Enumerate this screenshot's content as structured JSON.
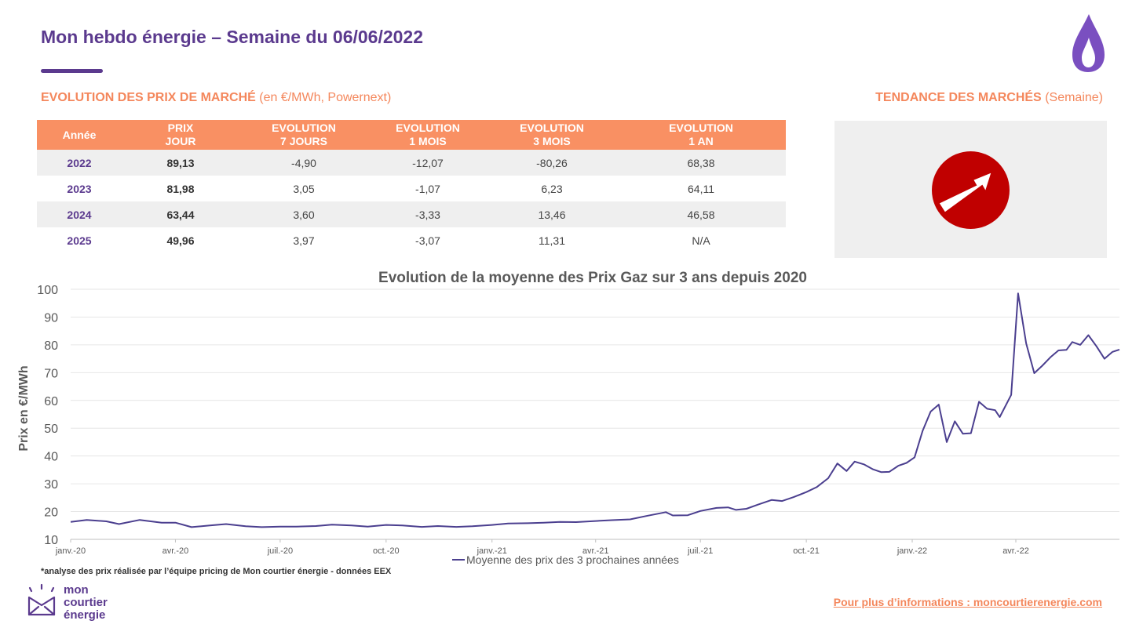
{
  "header": {
    "title": "Mon hebdo énergie – Semaine du 06/06/2022"
  },
  "prices_section": {
    "heading_bold": "EVOLUTION DES PRIX DE MARCHÉ",
    "heading_note": "(en €/MWh, Powernext)"
  },
  "trend_section": {
    "heading_bold": "TENDANCE DES MARCHÉS",
    "heading_note": "(Semaine)",
    "trend_icon": "arrow-up-right-circle-icon",
    "trend_color": "#c00000"
  },
  "prices_table": {
    "columns": [
      [
        "Année"
      ],
      [
        "PRIX",
        "JOUR"
      ],
      [
        "EVOLUTION",
        "7 JOURS"
      ],
      [
        "EVOLUTION",
        "1 MOIS"
      ],
      [
        "EVOLUTION",
        "3 MOIS"
      ],
      [
        "EVOLUTION",
        "1 AN"
      ]
    ],
    "rows": [
      [
        "2022",
        "89,13",
        "-4,90",
        "-12,07",
        "-80,26",
        "68,38"
      ],
      [
        "2023",
        "81,98",
        "3,05",
        "-1,07",
        "6,23",
        "64,11"
      ],
      [
        "2024",
        "63,44",
        "3,60",
        "-3,33",
        "13,46",
        "46,58"
      ],
      [
        "2025",
        "49,96",
        "3,97",
        "-3,07",
        "11,31",
        "N/A"
      ]
    ]
  },
  "chart_data": {
    "type": "line",
    "title": "Evolution de la moyenne des Prix Gaz sur 3 ans depuis 2020",
    "xlabel": "",
    "ylabel": "Prix en €/MWh",
    "ylim": [
      10,
      100
    ],
    "yticks": [
      10,
      20,
      30,
      40,
      50,
      60,
      70,
      80,
      90,
      100
    ],
    "grid": true,
    "legend_position": "bottom",
    "x_tick_labels": [
      "janv.-20",
      "avr.-20",
      "juil.-20",
      "oct.-20",
      "janv.-21",
      "avr.-21",
      "juil.-21",
      "oct.-21",
      "janv.-22",
      "avr.-22"
    ],
    "x_range": [
      "2020-01-01",
      "2022-06-06"
    ],
    "series": [
      {
        "name": "Moyenne des prix des 3 prochaines années",
        "color": "#4b3f8f",
        "points": [
          [
            "2020-01-01",
            16.3
          ],
          [
            "2020-01-15",
            17.0
          ],
          [
            "2020-02-01",
            16.5
          ],
          [
            "2020-02-12",
            15.5
          ],
          [
            "2020-03-01",
            17.0
          ],
          [
            "2020-03-20",
            16.0
          ],
          [
            "2020-04-01",
            16.0
          ],
          [
            "2020-04-15",
            14.4
          ],
          [
            "2020-05-01",
            15.0
          ],
          [
            "2020-05-15",
            15.5
          ],
          [
            "2020-06-01",
            14.7
          ],
          [
            "2020-06-15",
            14.4
          ],
          [
            "2020-07-01",
            14.6
          ],
          [
            "2020-07-15",
            14.6
          ],
          [
            "2020-08-01",
            14.8
          ],
          [
            "2020-08-15",
            15.3
          ],
          [
            "2020-09-01",
            15.0
          ],
          [
            "2020-09-15",
            14.6
          ],
          [
            "2020-10-01",
            15.2
          ],
          [
            "2020-10-15",
            15.0
          ],
          [
            "2020-11-01",
            14.5
          ],
          [
            "2020-11-15",
            14.8
          ],
          [
            "2020-12-01",
            14.5
          ],
          [
            "2020-12-15",
            14.7
          ],
          [
            "2021-01-01",
            15.2
          ],
          [
            "2021-01-15",
            15.7
          ],
          [
            "2021-02-01",
            15.8
          ],
          [
            "2021-02-15",
            16.0
          ],
          [
            "2021-03-01",
            16.3
          ],
          [
            "2021-03-15",
            16.2
          ],
          [
            "2021-04-01",
            16.6
          ],
          [
            "2021-04-15",
            16.9
          ],
          [
            "2021-05-01",
            17.2
          ],
          [
            "2021-05-15",
            18.4
          ],
          [
            "2021-06-01",
            19.8
          ],
          [
            "2021-06-07",
            18.6
          ],
          [
            "2021-06-20",
            18.7
          ],
          [
            "2021-07-01",
            20.2
          ],
          [
            "2021-07-15",
            21.3
          ],
          [
            "2021-07-25",
            21.5
          ],
          [
            "2021-08-01",
            20.6
          ],
          [
            "2021-08-10",
            21.0
          ],
          [
            "2021-08-20",
            22.5
          ],
          [
            "2021-09-01",
            24.2
          ],
          [
            "2021-09-10",
            23.8
          ],
          [
            "2021-09-20",
            25.2
          ],
          [
            "2021-10-01",
            27.0
          ],
          [
            "2021-10-10",
            28.8
          ],
          [
            "2021-10-20",
            32.0
          ],
          [
            "2021-10-28",
            37.3
          ],
          [
            "2021-11-05",
            34.6
          ],
          [
            "2021-11-12",
            38.0
          ],
          [
            "2021-11-20",
            37.0
          ],
          [
            "2021-11-28",
            35.2
          ],
          [
            "2021-12-05",
            34.2
          ],
          [
            "2021-12-12",
            34.3
          ],
          [
            "2021-12-20",
            36.5
          ],
          [
            "2021-12-27",
            37.5
          ],
          [
            "2022-01-03",
            39.5
          ],
          [
            "2022-01-10",
            49.0
          ],
          [
            "2022-01-17",
            56.0
          ],
          [
            "2022-01-24",
            58.5
          ],
          [
            "2022-01-31",
            45.0
          ],
          [
            "2022-02-07",
            52.5
          ],
          [
            "2022-02-14",
            48.0
          ],
          [
            "2022-02-21",
            48.2
          ],
          [
            "2022-02-28",
            59.5
          ],
          [
            "2022-03-07",
            57.0
          ],
          [
            "2022-03-14",
            56.5
          ],
          [
            "2022-03-18",
            54.0
          ],
          [
            "2022-03-28",
            62.0
          ],
          [
            "2022-04-03",
            98.5
          ],
          [
            "2022-04-10",
            80.5
          ],
          [
            "2022-04-17",
            69.8
          ],
          [
            "2022-04-24",
            72.5
          ],
          [
            "2022-05-01",
            75.5
          ],
          [
            "2022-05-08",
            78.0
          ],
          [
            "2022-05-15",
            78.2
          ],
          [
            "2022-05-20",
            81.0
          ],
          [
            "2022-05-27",
            80.0
          ],
          [
            "2022-06-03",
            83.5
          ],
          [
            "2022-06-10",
            79.5
          ],
          [
            "2022-06-17",
            75.0
          ],
          [
            "2022-06-24",
            77.5
          ],
          [
            "2022-06-30",
            78.3
          ]
        ]
      }
    ]
  },
  "footer": {
    "footnote": "*analyse des prix réalisée par l’équipe pricing de Mon courtier énergie -  données EEX",
    "logo_line1": "mon",
    "logo_line2": "courtier",
    "logo_line3": "énergie",
    "info_link": "Pour plus d’informations : moncourtierenergie.com",
    "brand_color": "#5b3a8e",
    "accent_color": "#f4875c"
  }
}
